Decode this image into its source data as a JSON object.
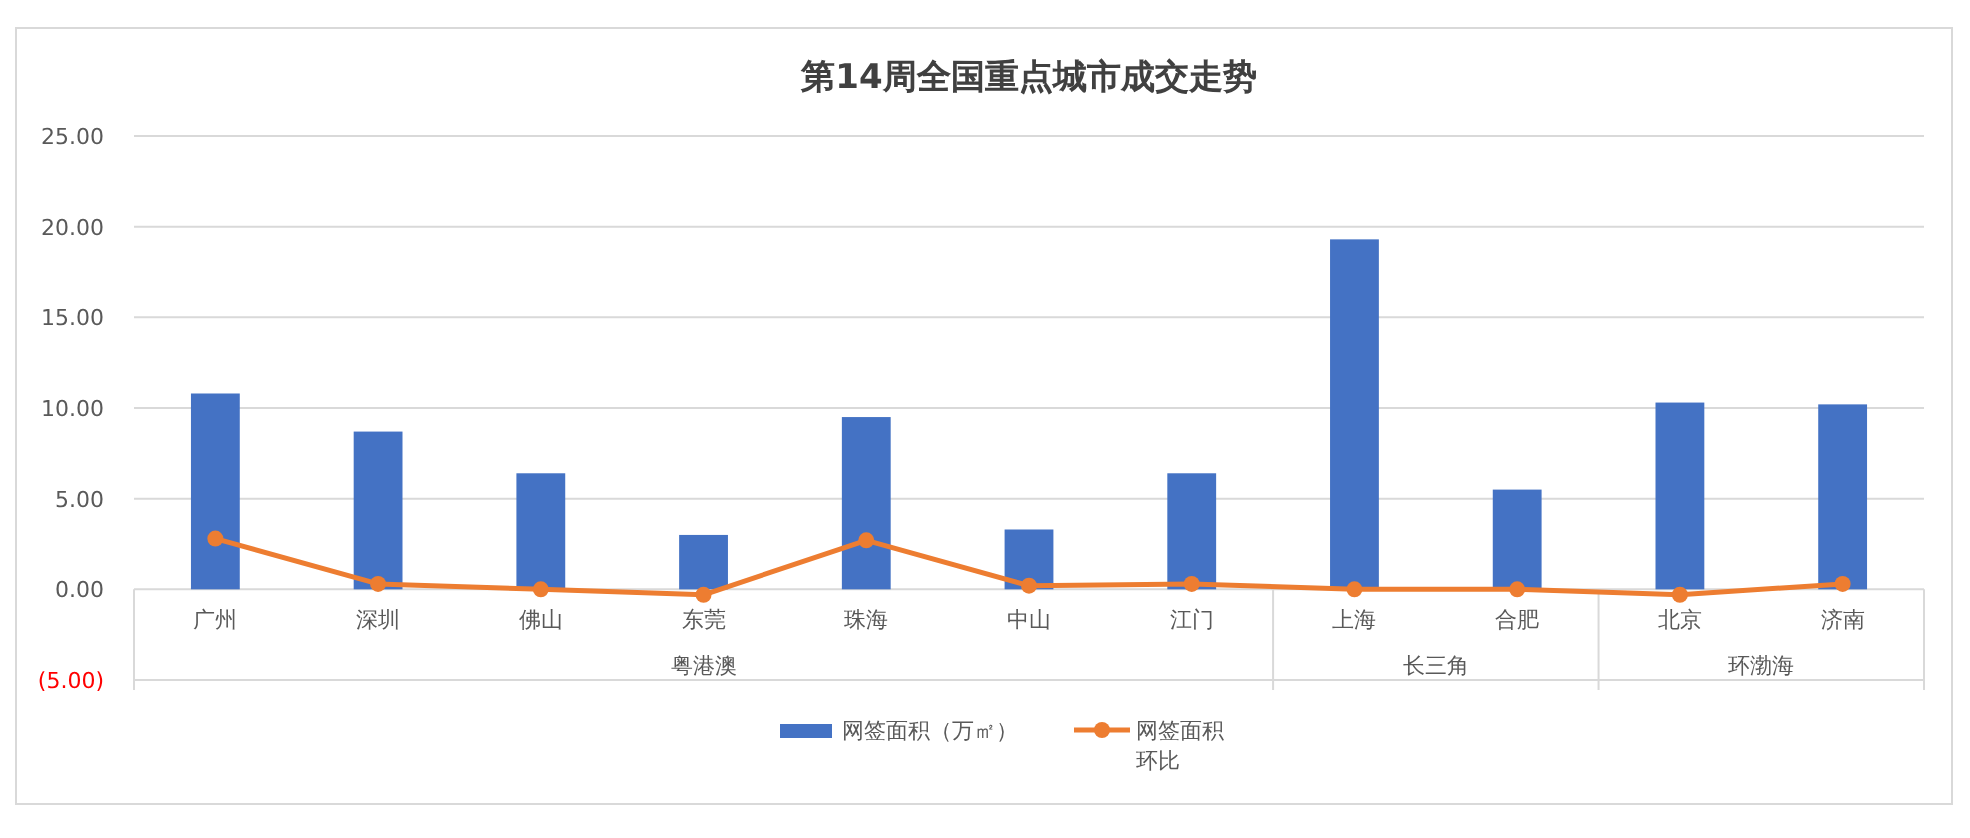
{
  "chart_data": {
    "type": "bar",
    "title": "第14周全国重点城市成交走势",
    "categories": [
      "广州",
      "深圳",
      "佛山",
      "东莞",
      "珠海",
      "中山",
      "江门",
      "上海",
      "合肥",
      "北京",
      "济南"
    ],
    "series": [
      {
        "name": "网签面积（万㎡）",
        "color": "#4472c4",
        "values": [
          10.8,
          8.7,
          6.4,
          3.0,
          9.5,
          3.3,
          6.4,
          19.3,
          5.5,
          10.3,
          10.2
        ]
      },
      {
        "name": "网签面积环比",
        "type": "line",
        "color": "#ed7d31",
        "marker": "circle",
        "values": [
          2.8,
          0.3,
          0.0,
          -0.3,
          2.7,
          0.2,
          0.3,
          0.0,
          0.0,
          -0.3,
          0.3
        ]
      }
    ],
    "annotations": [
      "粤港澳",
      "长三角",
      "环渤海"
    ],
    "ylim": [
      -5,
      25
    ],
    "yticks": [
      {
        "value": -5,
        "label": "(5.00)"
      },
      {
        "value": 0,
        "label": "0.00"
      },
      {
        "value": 5,
        "label": "5.00"
      },
      {
        "value": 10,
        "label": "10.00"
      },
      {
        "value": 15,
        "label": "15.00"
      },
      {
        "value": 20,
        "label": "20.00"
      },
      {
        "value": 25,
        "label": "25.00"
      }
    ],
    "grid": "y",
    "legend": "bottom"
  }
}
